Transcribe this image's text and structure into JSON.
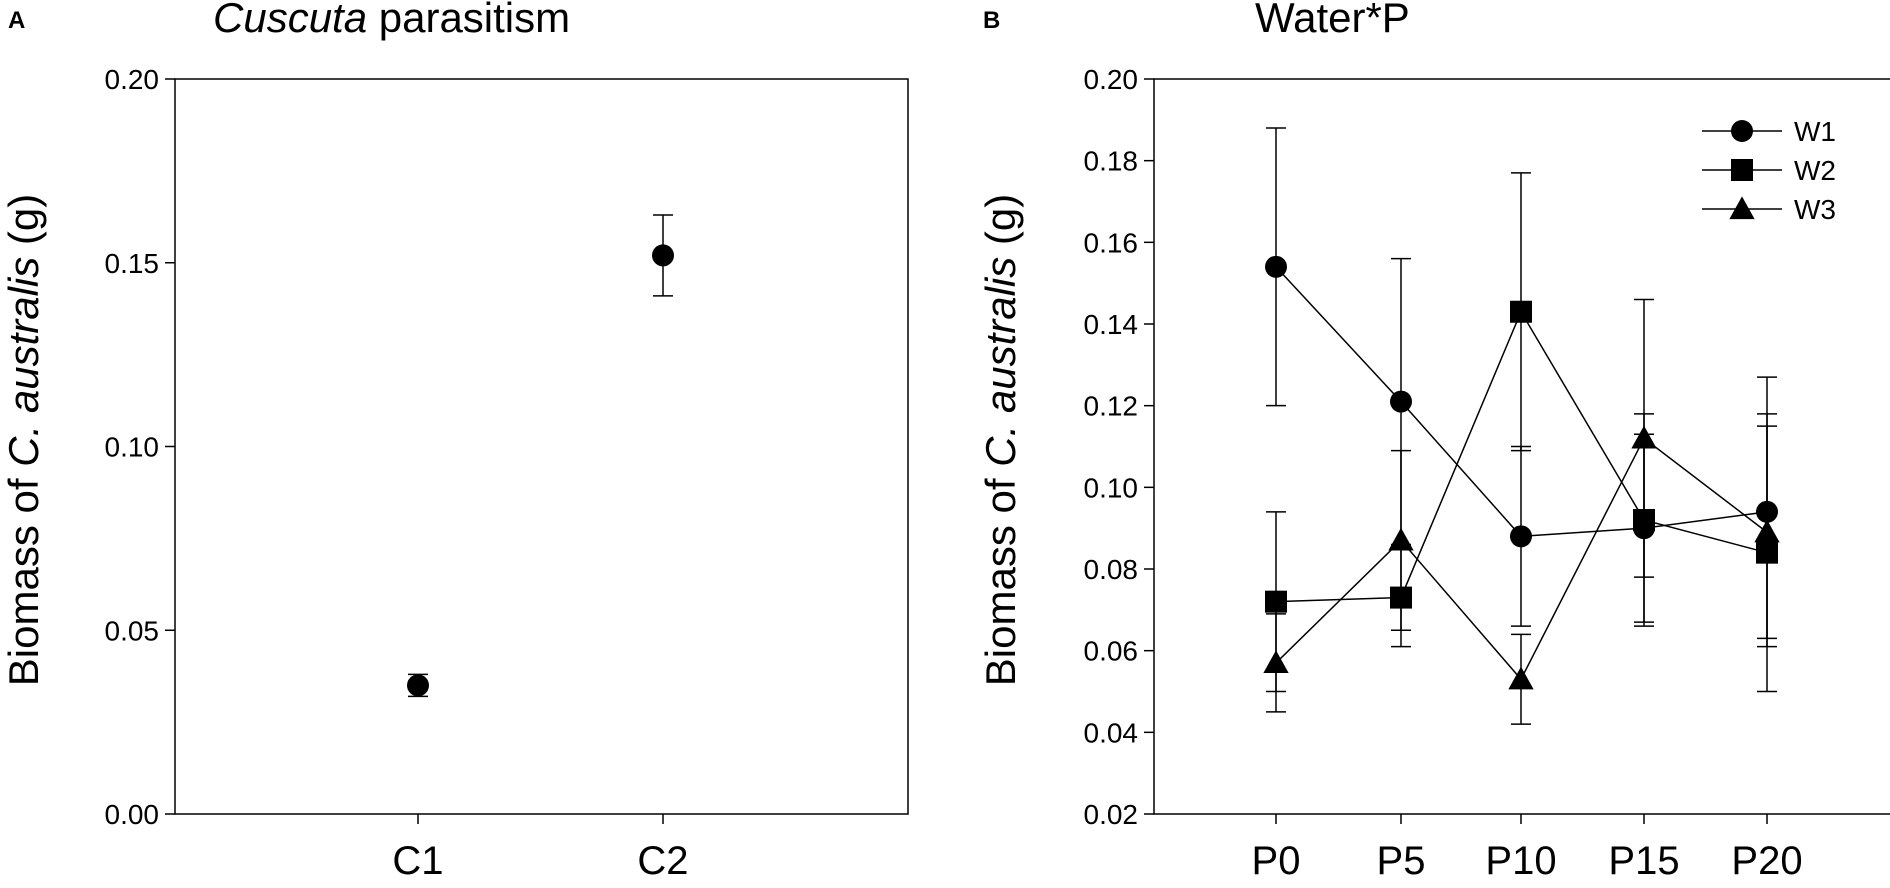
{
  "chart_data": [
    {
      "panel": "A",
      "type": "scatter",
      "title_italic": "Cuscuta",
      "title_rest": " parasitism",
      "ylabel_pre": "Biomass of ",
      "ylabel_italic": "C. australis",
      "ylabel_post": " (g)",
      "xlabel": "",
      "categories": [
        "C1",
        "C2"
      ],
      "ylim": [
        0.0,
        0.2
      ],
      "yticks": [
        "0.00",
        "0.05",
        "0.10",
        "0.15",
        "0.20"
      ],
      "ytick_values": [
        0.0,
        0.05,
        0.1,
        0.15,
        0.2
      ],
      "series": [
        {
          "name": "",
          "marker": "circle",
          "values": [
            0.035,
            0.152
          ],
          "errors": [
            0.003,
            0.011
          ]
        }
      ]
    },
    {
      "panel": "B",
      "type": "line",
      "title": "Water*P",
      "ylabel_pre": "Biomass of ",
      "ylabel_italic": "C. australis",
      "ylabel_post": " (g)",
      "xlabel": "",
      "categories": [
        "P0",
        "P5",
        "P10",
        "P15",
        "P20"
      ],
      "ylim": [
        0.02,
        0.2
      ],
      "yticks": [
        "0.02",
        "0.04",
        "0.06",
        "0.08",
        "0.10",
        "0.12",
        "0.14",
        "0.16",
        "0.18",
        "0.20"
      ],
      "ytick_values": [
        0.02,
        0.04,
        0.06,
        0.08,
        0.1,
        0.12,
        0.14,
        0.16,
        0.18,
        0.2
      ],
      "legend_position": "top-right",
      "series": [
        {
          "name": "W1",
          "marker": "circle",
          "values": [
            0.154,
            0.121,
            0.088,
            0.09,
            0.094
          ],
          "errors": [
            0.034,
            0.035,
            0.022,
            0.023,
            0.033
          ]
        },
        {
          "name": "W2",
          "marker": "square",
          "values": [
            0.072,
            0.073,
            0.143,
            0.092,
            0.084
          ],
          "errors": [
            0.022,
            0.012,
            0.034,
            0.026,
            0.034
          ]
        },
        {
          "name": "W3",
          "marker": "triangle",
          "values": [
            0.057,
            0.087,
            0.053,
            0.112,
            0.089
          ],
          "errors": [
            0.012,
            0.022,
            0.011,
            0.034,
            0.026
          ]
        }
      ]
    }
  ]
}
